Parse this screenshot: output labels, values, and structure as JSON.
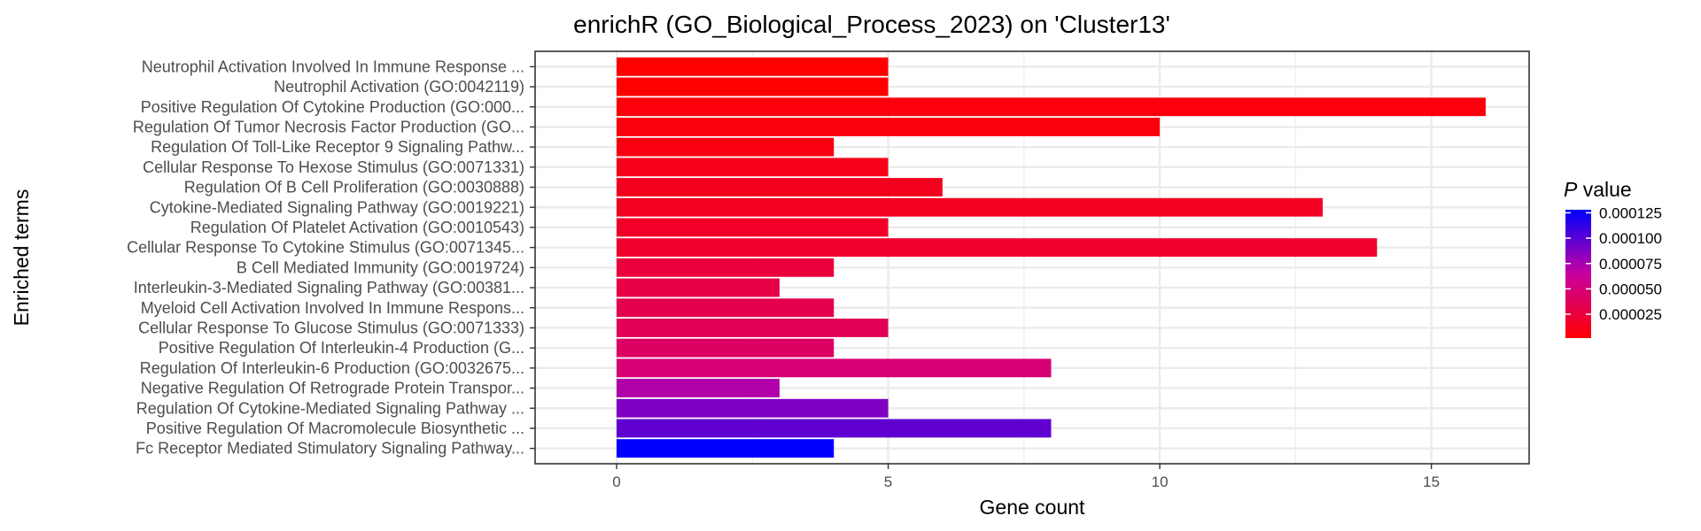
{
  "chart_data": {
    "type": "bar",
    "orientation": "horizontal",
    "title": "enrichR (GO_Biological_Process_2023) on 'Cluster13'",
    "xlabel": "Gene count",
    "ylabel": "Enriched terms",
    "xlim": [
      -1.5,
      16.8
    ],
    "xticks": [
      0,
      5,
      10,
      15
    ],
    "grid": true,
    "legend": {
      "title_italic": "P",
      "title_rest": " value",
      "placement": "right",
      "ticks": [
        {
          "value": 2.5e-05,
          "label": "0.000025"
        },
        {
          "value": 5e-05,
          "label": "0.000050"
        },
        {
          "value": 7.5e-05,
          "label": "0.000075"
        },
        {
          "value": 0.0001,
          "label": "0.000100"
        },
        {
          "value": 0.000125,
          "label": "0.000125"
        }
      ],
      "range": [
        1.5e-06,
        0.000128
      ],
      "low_color": "#ff0000",
      "high_color": "#0000ff"
    },
    "terms": [
      {
        "label": "Neutrophil Activation Involved In Immune Response ...",
        "count": 5,
        "p": 2e-06
      },
      {
        "label": "Neutrophil Activation (GO:0042119)",
        "count": 5,
        "p": 2e-06
      },
      {
        "label": "Positive Regulation Of Cytokine Production (GO:000...",
        "count": 16,
        "p": 6e-06
      },
      {
        "label": "Regulation Of Tumor Necrosis Factor Production (GO...",
        "count": 10,
        "p": 7e-06
      },
      {
        "label": "Regulation Of Toll-Like Receptor 9 Signaling Pathw...",
        "count": 4,
        "p": 8e-06
      },
      {
        "label": "Cellular Response To Hexose Stimulus (GO:0071331)",
        "count": 5,
        "p": 1.2e-05
      },
      {
        "label": "Regulation Of B Cell Proliferation (GO:0030888)",
        "count": 6,
        "p": 1.4e-05
      },
      {
        "label": "Cytokine-Mediated Signaling Pathway (GO:0019221)",
        "count": 13,
        "p": 1.5e-05
      },
      {
        "label": "Regulation Of Platelet Activation (GO:0010543)",
        "count": 5,
        "p": 1.7e-05
      },
      {
        "label": "Cellular Response To Cytokine Stimulus (GO:0071345...",
        "count": 14,
        "p": 1.9e-05
      },
      {
        "label": "B Cell Mediated Immunity (GO:0019724)",
        "count": 4,
        "p": 2.5e-05
      },
      {
        "label": "Interleukin-3-Mediated Signaling Pathway (GO:00381...",
        "count": 3,
        "p": 2.9e-05
      },
      {
        "label": "Myeloid Cell Activation Involved In Immune Respons...",
        "count": 4,
        "p": 3.3e-05
      },
      {
        "label": "Cellular Response To Glucose Stimulus (GO:0071333)",
        "count": 5,
        "p": 3.5e-05
      },
      {
        "label": "Positive Regulation Of Interleukin-4 Production (G...",
        "count": 4,
        "p": 4.1e-05
      },
      {
        "label": "Regulation Of Interleukin-6 Production (GO:0032675...",
        "count": 8,
        "p": 4.8e-05
      },
      {
        "label": "Negative Regulation Of Retrograde Protein Transpor...",
        "count": 3,
        "p": 7.2e-05
      },
      {
        "label": "Regulation Of Cytokine-Mediated Signaling Pathway ...",
        "count": 5,
        "p": 8.8e-05
      },
      {
        "label": "Positive Regulation Of Macromolecule Biosynthetic ...",
        "count": 8,
        "p": 9.8e-05
      },
      {
        "label": "Fc Receptor Mediated Stimulatory Signaling Pathway...",
        "count": 4,
        "p": 0.000128
      }
    ]
  }
}
